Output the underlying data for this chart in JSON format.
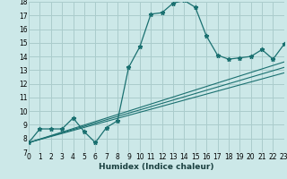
{
  "xlabel": "Humidex (Indice chaleur)",
  "bg_color": "#cce8e8",
  "grid_color": "#aacccc",
  "line_color": "#1a7070",
  "xmin": 0,
  "xmax": 23,
  "ymin": 7,
  "ymax": 18,
  "main_series_x": [
    0,
    1,
    2,
    3,
    4,
    5,
    6,
    7,
    8,
    9,
    10,
    11,
    12,
    13,
    14,
    15,
    16,
    17,
    18,
    19,
    20,
    21,
    22,
    23
  ],
  "main_series_y": [
    7.7,
    8.7,
    8.7,
    8.7,
    9.5,
    8.5,
    7.7,
    8.8,
    9.3,
    13.2,
    14.7,
    17.1,
    17.2,
    17.9,
    18.1,
    17.6,
    15.5,
    14.1,
    13.8,
    13.9,
    14.0,
    14.5,
    13.8,
    14.9
  ],
  "line1_x": [
    0,
    23
  ],
  "line1_y": [
    7.7,
    12.8
  ],
  "line2_x": [
    0,
    23
  ],
  "line2_y": [
    7.7,
    13.2
  ],
  "line3_x": [
    0,
    23
  ],
  "line3_y": [
    7.7,
    13.6
  ],
  "tick_fontsize": 5.5,
  "xlabel_fontsize": 6.5
}
